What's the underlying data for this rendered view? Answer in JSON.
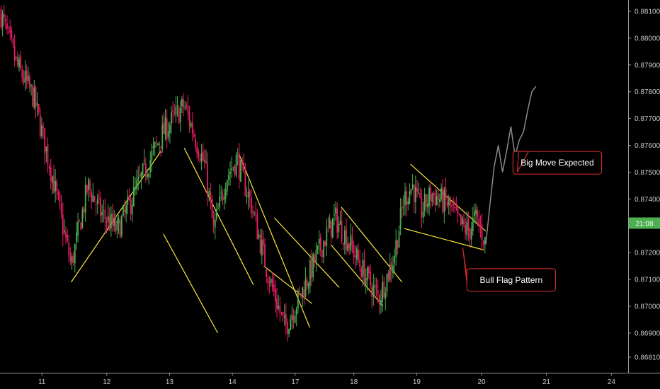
{
  "chart_data": {
    "type": "candlestick",
    "title": "",
    "xlabel": "",
    "ylabel": "",
    "ylim": [
      0.8676,
      0.8812
    ],
    "y_ticks": [
      "0.88100",
      "0.88000",
      "0.87900",
      "0.87800",
      "0.87700",
      "0.87600",
      "0.87500",
      "0.87400",
      "0.87300",
      "0.87200",
      "0.87100",
      "0.87000",
      "0.86900",
      "0.86810"
    ],
    "x_ticks": [
      "11",
      "12",
      "13",
      "14",
      "17",
      "18",
      "19",
      "20",
      "21",
      "24"
    ],
    "x_domain": [
      0,
      300
    ],
    "x_tick_values": [
      20,
      51,
      81,
      111,
      141,
      169,
      199,
      230,
      261,
      292
    ],
    "price_badge": "21:08",
    "price_badge_value": 0.8731,
    "colors": {
      "up": "#4caf50",
      "down": "#e91e63",
      "trendline": "#ffeb3b",
      "projection": "#8a8a8a",
      "callout_border": "#c62828"
    },
    "price_path": [
      [
        0,
        0.881
      ],
      [
        8,
        0.879
      ],
      [
        16,
        0.8778
      ],
      [
        24,
        0.8752
      ],
      [
        34,
        0.8715
      ],
      [
        42,
        0.8745
      ],
      [
        48,
        0.8735
      ],
      [
        56,
        0.8728
      ],
      [
        70,
        0.8752
      ],
      [
        78,
        0.8765
      ],
      [
        88,
        0.8775
      ],
      [
        98,
        0.8752
      ],
      [
        102,
        0.8728
      ],
      [
        108,
        0.8748
      ],
      [
        113,
        0.8755
      ],
      [
        120,
        0.8738
      ],
      [
        128,
        0.8712
      ],
      [
        136,
        0.8692
      ],
      [
        144,
        0.8705
      ],
      [
        152,
        0.872
      ],
      [
        160,
        0.8733
      ],
      [
        168,
        0.8722
      ],
      [
        174,
        0.8712
      ],
      [
        181,
        0.8703
      ],
      [
        188,
        0.8718
      ],
      [
        193,
        0.874
      ],
      [
        197,
        0.8745
      ],
      [
        201,
        0.8735
      ],
      [
        206,
        0.8742
      ],
      [
        214,
        0.8738
      ],
      [
        220,
        0.873
      ],
      [
        224,
        0.8728
      ],
      [
        227,
        0.8733
      ],
      [
        230,
        0.8728
      ],
      [
        232,
        0.8723
      ]
    ],
    "projection": [
      [
        232,
        0.8723
      ],
      [
        234,
        0.8738
      ],
      [
        236,
        0.8752
      ],
      [
        238,
        0.876
      ],
      [
        240,
        0.875
      ],
      [
        242,
        0.8758
      ],
      [
        244,
        0.8767
      ],
      [
        246,
        0.8756
      ],
      [
        248,
        0.8762
      ],
      [
        250,
        0.8765
      ],
      [
        252,
        0.8773
      ],
      [
        254,
        0.878
      ],
      [
        256,
        0.8782
      ]
    ],
    "trendlines": [
      [
        [
          34,
          0.8709
        ],
        [
          77,
          0.8758
        ]
      ],
      [
        [
          78,
          0.8727
        ],
        [
          104,
          0.869
        ]
      ],
      [
        [
          88,
          0.8759
        ],
        [
          121,
          0.8708
        ]
      ],
      [
        [
          114,
          0.8757
        ],
        [
          148,
          0.8692
        ]
      ],
      [
        [
          126,
          0.8715
        ],
        [
          149,
          0.8701
        ]
      ],
      [
        [
          131,
          0.8733
        ],
        [
          162,
          0.8707
        ]
      ],
      [
        [
          158,
          0.8723
        ],
        [
          183,
          0.87
        ]
      ],
      [
        [
          163,
          0.8737
        ],
        [
          192,
          0.8709
        ]
      ],
      [
        [
          193,
          0.8729
        ],
        [
          231,
          0.8721
        ]
      ],
      [
        [
          196,
          0.8753
        ],
        [
          232,
          0.8728
        ]
      ]
    ],
    "annotations": [
      {
        "text": "Big Move Expected",
        "x": 245,
        "y": 0.87535,
        "pointer_to": [
          247,
          0.875
        ]
      },
      {
        "text": "Bull Flag Pattern",
        "x": 223,
        "y": 0.87098,
        "pointer_to": [
          221,
          0.8722
        ]
      }
    ]
  }
}
